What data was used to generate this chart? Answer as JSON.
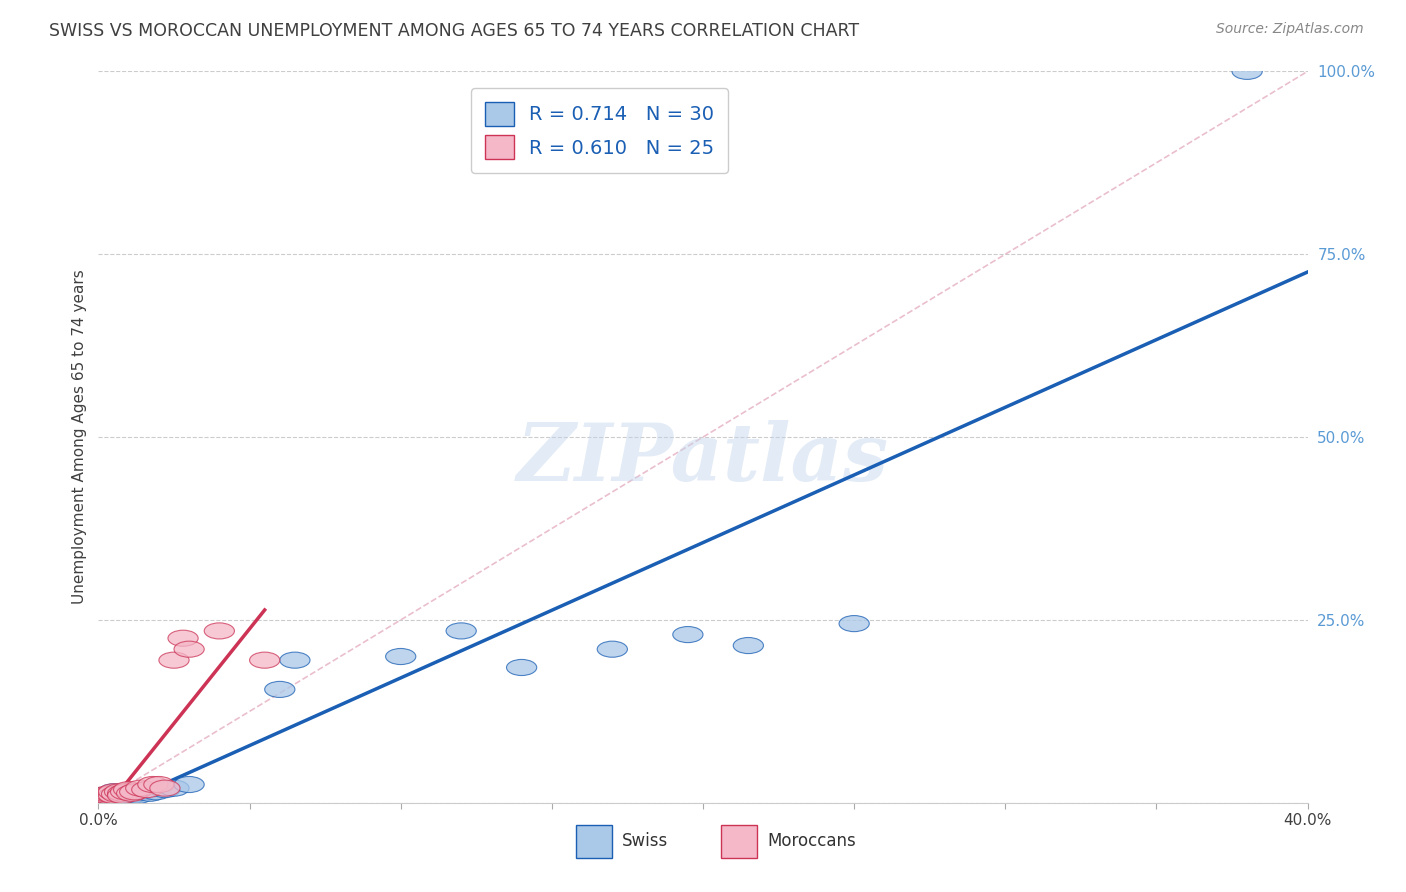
{
  "title": "SWISS VS MOROCCAN UNEMPLOYMENT AMONG AGES 65 TO 74 YEARS CORRELATION CHART",
  "source": "Source: ZipAtlas.com",
  "ylabel": "Unemployment Among Ages 65 to 74 years",
  "xlim": [
    0.0,
    0.4
  ],
  "ylim": [
    0.0,
    1.0
  ],
  "xticks": [
    0.0,
    0.05,
    0.1,
    0.15,
    0.2,
    0.25,
    0.3,
    0.35,
    0.4
  ],
  "yticks": [
    0.0,
    0.25,
    0.5,
    0.75,
    1.0
  ],
  "ytick_labels": [
    "",
    "25.0%",
    "50.0%",
    "75.0%",
    "100.0%"
  ],
  "xtick_labels_show": [
    "0.0%",
    "40.0%"
  ],
  "swiss_color": "#aac8e8",
  "moroccan_color": "#f4b8c8",
  "swiss_line_color": "#1a5fb4",
  "moroccan_line_color": "#cc3355",
  "ref_line_color": "#e8b0c0",
  "swiss_R": 0.714,
  "swiss_N": 30,
  "moroccan_R": 0.61,
  "moroccan_N": 25,
  "legend_label_swiss": "Swiss",
  "legend_label_moroccan": "Moroccans",
  "swiss_x": [
    0.001,
    0.002,
    0.003,
    0.004,
    0.005,
    0.005,
    0.006,
    0.007,
    0.008,
    0.009,
    0.01,
    0.011,
    0.012,
    0.013,
    0.015,
    0.017,
    0.019,
    0.022,
    0.025,
    0.03,
    0.06,
    0.065,
    0.1,
    0.12,
    0.14,
    0.17,
    0.195,
    0.215,
    0.25,
    0.38
  ],
  "swiss_y": [
    0.01,
    0.008,
    0.01,
    0.012,
    0.01,
    0.015,
    0.008,
    0.012,
    0.01,
    0.012,
    0.008,
    0.01,
    0.012,
    0.01,
    0.015,
    0.013,
    0.015,
    0.018,
    0.02,
    0.025,
    0.155,
    0.195,
    0.2,
    0.235,
    0.185,
    0.21,
    0.23,
    0.215,
    0.245,
    1.0
  ],
  "moroccan_x": [
    0.001,
    0.002,
    0.003,
    0.003,
    0.004,
    0.005,
    0.005,
    0.006,
    0.007,
    0.008,
    0.008,
    0.009,
    0.01,
    0.011,
    0.012,
    0.014,
    0.016,
    0.018,
    0.02,
    0.022,
    0.025,
    0.028,
    0.03,
    0.04,
    0.055
  ],
  "moroccan_y": [
    0.008,
    0.01,
    0.01,
    0.012,
    0.012,
    0.01,
    0.015,
    0.012,
    0.015,
    0.013,
    0.01,
    0.015,
    0.018,
    0.013,
    0.015,
    0.02,
    0.018,
    0.025,
    0.025,
    0.02,
    0.195,
    0.225,
    0.21,
    0.235,
    0.195
  ],
  "watermark": "ZIPatlas",
  "background_color": "#ffffff",
  "grid_color": "#cccccc",
  "title_color": "#404040",
  "axis_label_color": "#404040",
  "tick_color_x": "#404040",
  "tick_color_y": "#5b9bd5",
  "legend_text_color_blue": "#1a5fb4",
  "legend_text_color_dark": "#333333"
}
